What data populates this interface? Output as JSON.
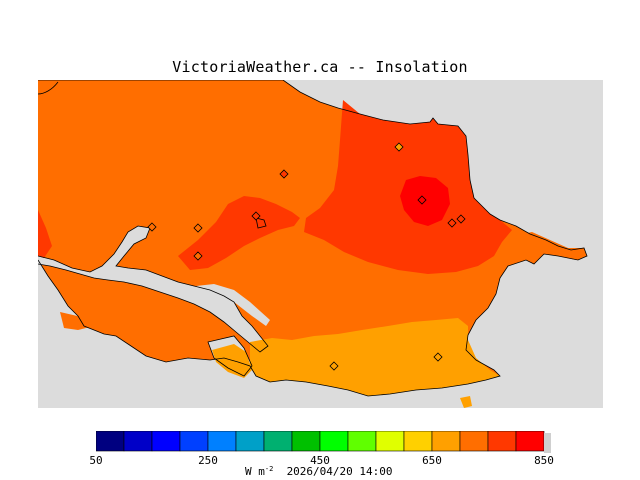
{
  "title": "VictoriaWeather.ca -- Insolation",
  "colorbar": {
    "min": 50,
    "max": 850,
    "step": 50,
    "tick_labels": [
      "50",
      "250",
      "450",
      "650",
      "850"
    ],
    "colors": [
      "#000080",
      "#0000c8",
      "#0000ff",
      "#0040ff",
      "#0080ff",
      "#00a0c8",
      "#00b070",
      "#00c000",
      "#00ff00",
      "#60ff00",
      "#e0ff00",
      "#ffd000",
      "#ffa000",
      "#ff6e00",
      "#ff3800",
      "#ff0000"
    ],
    "units_prefix": "W m",
    "units_exp": "-2",
    "timestamp": "2026/04/20 14:00"
  },
  "colors": {
    "background_land_outside": "#dcdcdc",
    "band_650_700": "#ffa000",
    "band_700_750": "#ff6e00",
    "band_750_800": "#ff3800",
    "band_800_850": "#ff0000"
  },
  "stations": [
    {
      "value_band": "750-800"
    },
    {
      "value_band": "700-750"
    },
    {
      "value_band": "700-750"
    },
    {
      "value_band": "700-750"
    },
    {
      "value_band": "750-800"
    },
    {
      "value_band": "800-850"
    },
    {
      "value_band": "750-800"
    },
    {
      "value_band": "750-800"
    },
    {
      "value_band": "650-700"
    },
    {
      "value_band": "650-700"
    }
  ]
}
